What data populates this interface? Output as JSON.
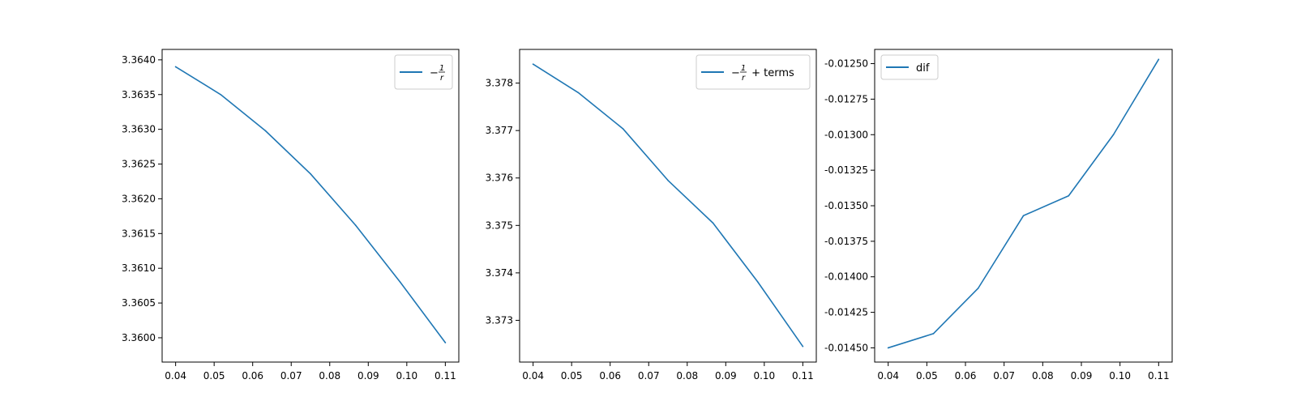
{
  "chart_data": [
    {
      "type": "line",
      "title": "",
      "xlabel": "",
      "ylabel": "",
      "x": [
        0.04,
        0.0517,
        0.0633,
        0.075,
        0.0867,
        0.0983,
        0.11
      ],
      "x_ticks": [
        "0.04",
        "0.05",
        "0.06",
        "0.07",
        "0.08",
        "0.09",
        "0.10",
        "0.11"
      ],
      "xlim": [
        0.0365,
        0.1135
      ],
      "ylim": [
        3.35965,
        3.36415
      ],
      "y_ticks": [
        "3.3600",
        "3.3605",
        "3.3610",
        "3.3615",
        "3.3620",
        "3.3625",
        "3.3630",
        "3.3635",
        "3.3640"
      ],
      "legend_loc": "upper right",
      "series": [
        {
          "name": "−1/r",
          "legend": {
            "prefix": "−",
            "num": "1",
            "den": "r",
            "suffix": ""
          },
          "color": "#1f77b4",
          "values": [
            3.3639,
            3.3635,
            3.36298,
            3.36236,
            3.36162,
            3.3608,
            3.35993
          ]
        }
      ]
    },
    {
      "type": "line",
      "title": "",
      "xlabel": "",
      "ylabel": "",
      "x": [
        0.04,
        0.0517,
        0.0633,
        0.075,
        0.0867,
        0.0983,
        0.11
      ],
      "x_ticks": [
        "0.04",
        "0.05",
        "0.06",
        "0.07",
        "0.08",
        "0.09",
        "0.10",
        "0.11"
      ],
      "xlim": [
        0.0365,
        0.1135
      ],
      "ylim": [
        3.37212,
        3.37871
      ],
      "y_ticks": [
        "3.373",
        "3.374",
        "3.375",
        "3.376",
        "3.377",
        "3.378"
      ],
      "legend_loc": "upper right",
      "series": [
        {
          "name": "−1/r + terms",
          "legend": {
            "prefix": "−",
            "num": "1",
            "den": "r",
            "suffix": " + terms"
          },
          "color": "#1f77b4",
          "values": [
            3.3784,
            3.3778,
            3.37704,
            3.37595,
            3.37505,
            3.37381,
            3.37245
          ]
        }
      ]
    },
    {
      "type": "line",
      "title": "",
      "xlabel": "",
      "ylabel": "",
      "x": [
        0.04,
        0.0517,
        0.0633,
        0.075,
        0.0867,
        0.0983,
        0.11
      ],
      "x_ticks": [
        "0.04",
        "0.05",
        "0.06",
        "0.07",
        "0.08",
        "0.09",
        "0.10",
        "0.11"
      ],
      "xlim": [
        0.0365,
        0.1135
      ],
      "ylim": [
        -0.0146,
        -0.0124
      ],
      "y_ticks": [
        "-0.01450",
        "-0.01425",
        "-0.01400",
        "-0.01375",
        "-0.01350",
        "-0.01325",
        "-0.01300",
        "-0.01275",
        "-0.01250"
      ],
      "legend_loc": "upper left",
      "series": [
        {
          "name": "dif",
          "legend": {
            "prefix": "",
            "num": "",
            "den": "",
            "suffix": "dif"
          },
          "color": "#1f77b4",
          "values": [
            -0.0145,
            -0.0144,
            -0.01408,
            -0.01357,
            -0.01343,
            -0.013,
            -0.01247
          ]
        }
      ]
    }
  ]
}
